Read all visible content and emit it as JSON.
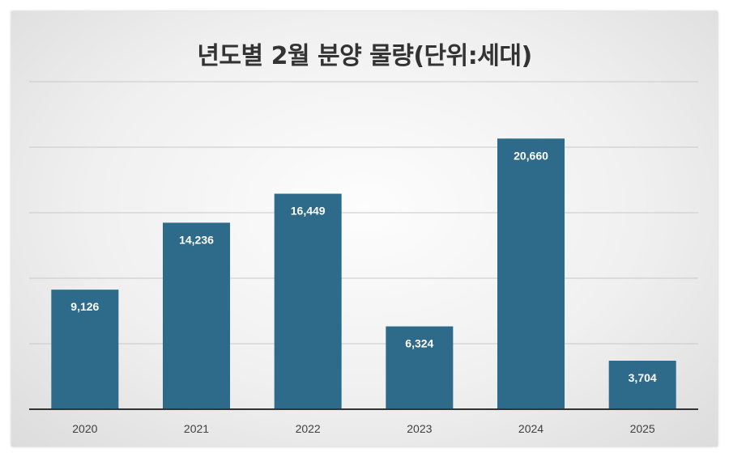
{
  "chart_data": {
    "type": "bar",
    "title": "년도별 2월 분양 물량(단위:세대)",
    "categories": [
      "2020",
      "2021",
      "2022",
      "2023",
      "2024",
      "2025"
    ],
    "values": [
      9126,
      14236,
      16449,
      6324,
      20660,
      3704
    ],
    "value_labels": [
      "9,126",
      "14,236",
      "16,449",
      "6,324",
      "20,660",
      "3,704"
    ],
    "ylim": [
      0,
      25000
    ],
    "gridlines": [
      5000,
      10000,
      15000,
      20000,
      25000
    ],
    "grid": true,
    "legend": "none",
    "bar_color": "#2e6b8a"
  }
}
